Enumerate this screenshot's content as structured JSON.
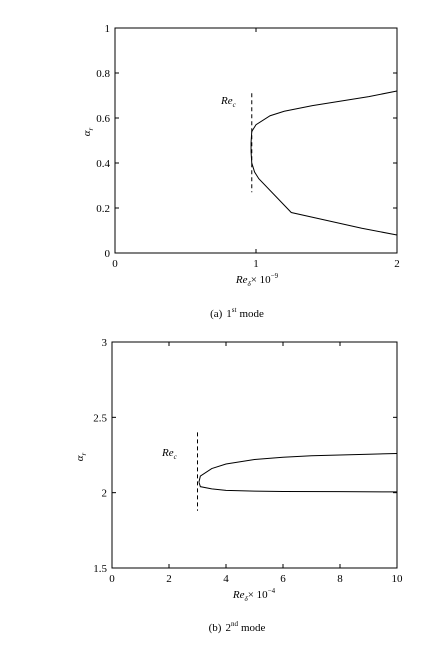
{
  "chart_data": [
    {
      "type": "line",
      "caption_prefix": "(a)",
      "caption_mode_num": "1",
      "caption_mode_sup": "st",
      "caption_mode_word": "mode",
      "xlabel_main": "Re",
      "xlabel_sub": "δ",
      "xlabel_rest": "× 10",
      "xlabel_exp": "−9",
      "ylabel_main": "α",
      "ylabel_sub": "r",
      "annotation_main": "Re",
      "annotation_sub": "c",
      "xlim": [
        0,
        2
      ],
      "ylim": [
        0,
        1
      ],
      "xticks": [
        0,
        1,
        2
      ],
      "xtick_labels": [
        "0",
        "1",
        "2"
      ],
      "yticks": [
        0,
        0.2,
        0.4,
        0.6,
        0.8,
        1
      ],
      "ytick_labels": [
        "0",
        "0.2",
        "0.4",
        "0.6",
        "0.8",
        "1"
      ],
      "critical_x": 0.97,
      "critical_y_range": [
        0.27,
        0.71
      ],
      "series": [
        {
          "points": [
            [
              0.97,
              0.54
            ],
            [
              1.0,
              0.57
            ],
            [
              1.1,
              0.61
            ],
            [
              1.2,
              0.63
            ],
            [
              1.4,
              0.655
            ],
            [
              1.6,
              0.675
            ],
            [
              1.8,
              0.695
            ],
            [
              2.0,
              0.72
            ]
          ]
        },
        {
          "points": [
            [
              0.97,
              0.54
            ],
            [
              0.965,
              0.49
            ],
            [
              0.965,
              0.45
            ],
            [
              0.97,
              0.4
            ],
            [
              0.99,
              0.36
            ],
            [
              1.02,
              0.33
            ],
            [
              1.25,
              0.18
            ],
            [
              1.5,
              0.145
            ],
            [
              1.75,
              0.11
            ],
            [
              2.0,
              0.08
            ]
          ]
        }
      ]
    },
    {
      "type": "line",
      "caption_prefix": "(b)",
      "caption_mode_num": "2",
      "caption_mode_sup": "nd",
      "caption_mode_word": "mode",
      "xlabel_main": "Re",
      "xlabel_sub": "δ",
      "xlabel_rest": "× 10",
      "xlabel_exp": "−4",
      "ylabel_main": "α",
      "ylabel_sub": "r",
      "annotation_main": "Re",
      "annotation_sub": "c",
      "xlim": [
        0,
        10
      ],
      "ylim": [
        1.5,
        3
      ],
      "xticks": [
        0,
        2,
        4,
        6,
        8,
        10
      ],
      "xtick_labels": [
        "0",
        "2",
        "4",
        "6",
        "8",
        "10"
      ],
      "yticks": [
        1.5,
        2,
        2.5,
        3
      ],
      "ytick_labels": [
        "1.5",
        "2",
        "2.5",
        "3"
      ],
      "critical_x": 3.0,
      "critical_y_range": [
        1.88,
        2.4
      ],
      "series": [
        {
          "points": [
            [
              3.05,
              2.07
            ],
            [
              3.1,
              2.11
            ],
            [
              3.5,
              2.16
            ],
            [
              4.0,
              2.19
            ],
            [
              5.0,
              2.22
            ],
            [
              6.0,
              2.235
            ],
            [
              7.0,
              2.245
            ],
            [
              8.0,
              2.25
            ],
            [
              9.0,
              2.255
            ],
            [
              10.0,
              2.26
            ]
          ]
        },
        {
          "points": [
            [
              3.05,
              2.07
            ],
            [
              3.1,
              2.04
            ],
            [
              3.5,
              2.025
            ],
            [
              4.0,
              2.015
            ],
            [
              5.0,
              2.01
            ],
            [
              6.0,
              2.008
            ],
            [
              8.0,
              2.007
            ],
            [
              10.0,
              2.005
            ]
          ]
        }
      ]
    }
  ]
}
